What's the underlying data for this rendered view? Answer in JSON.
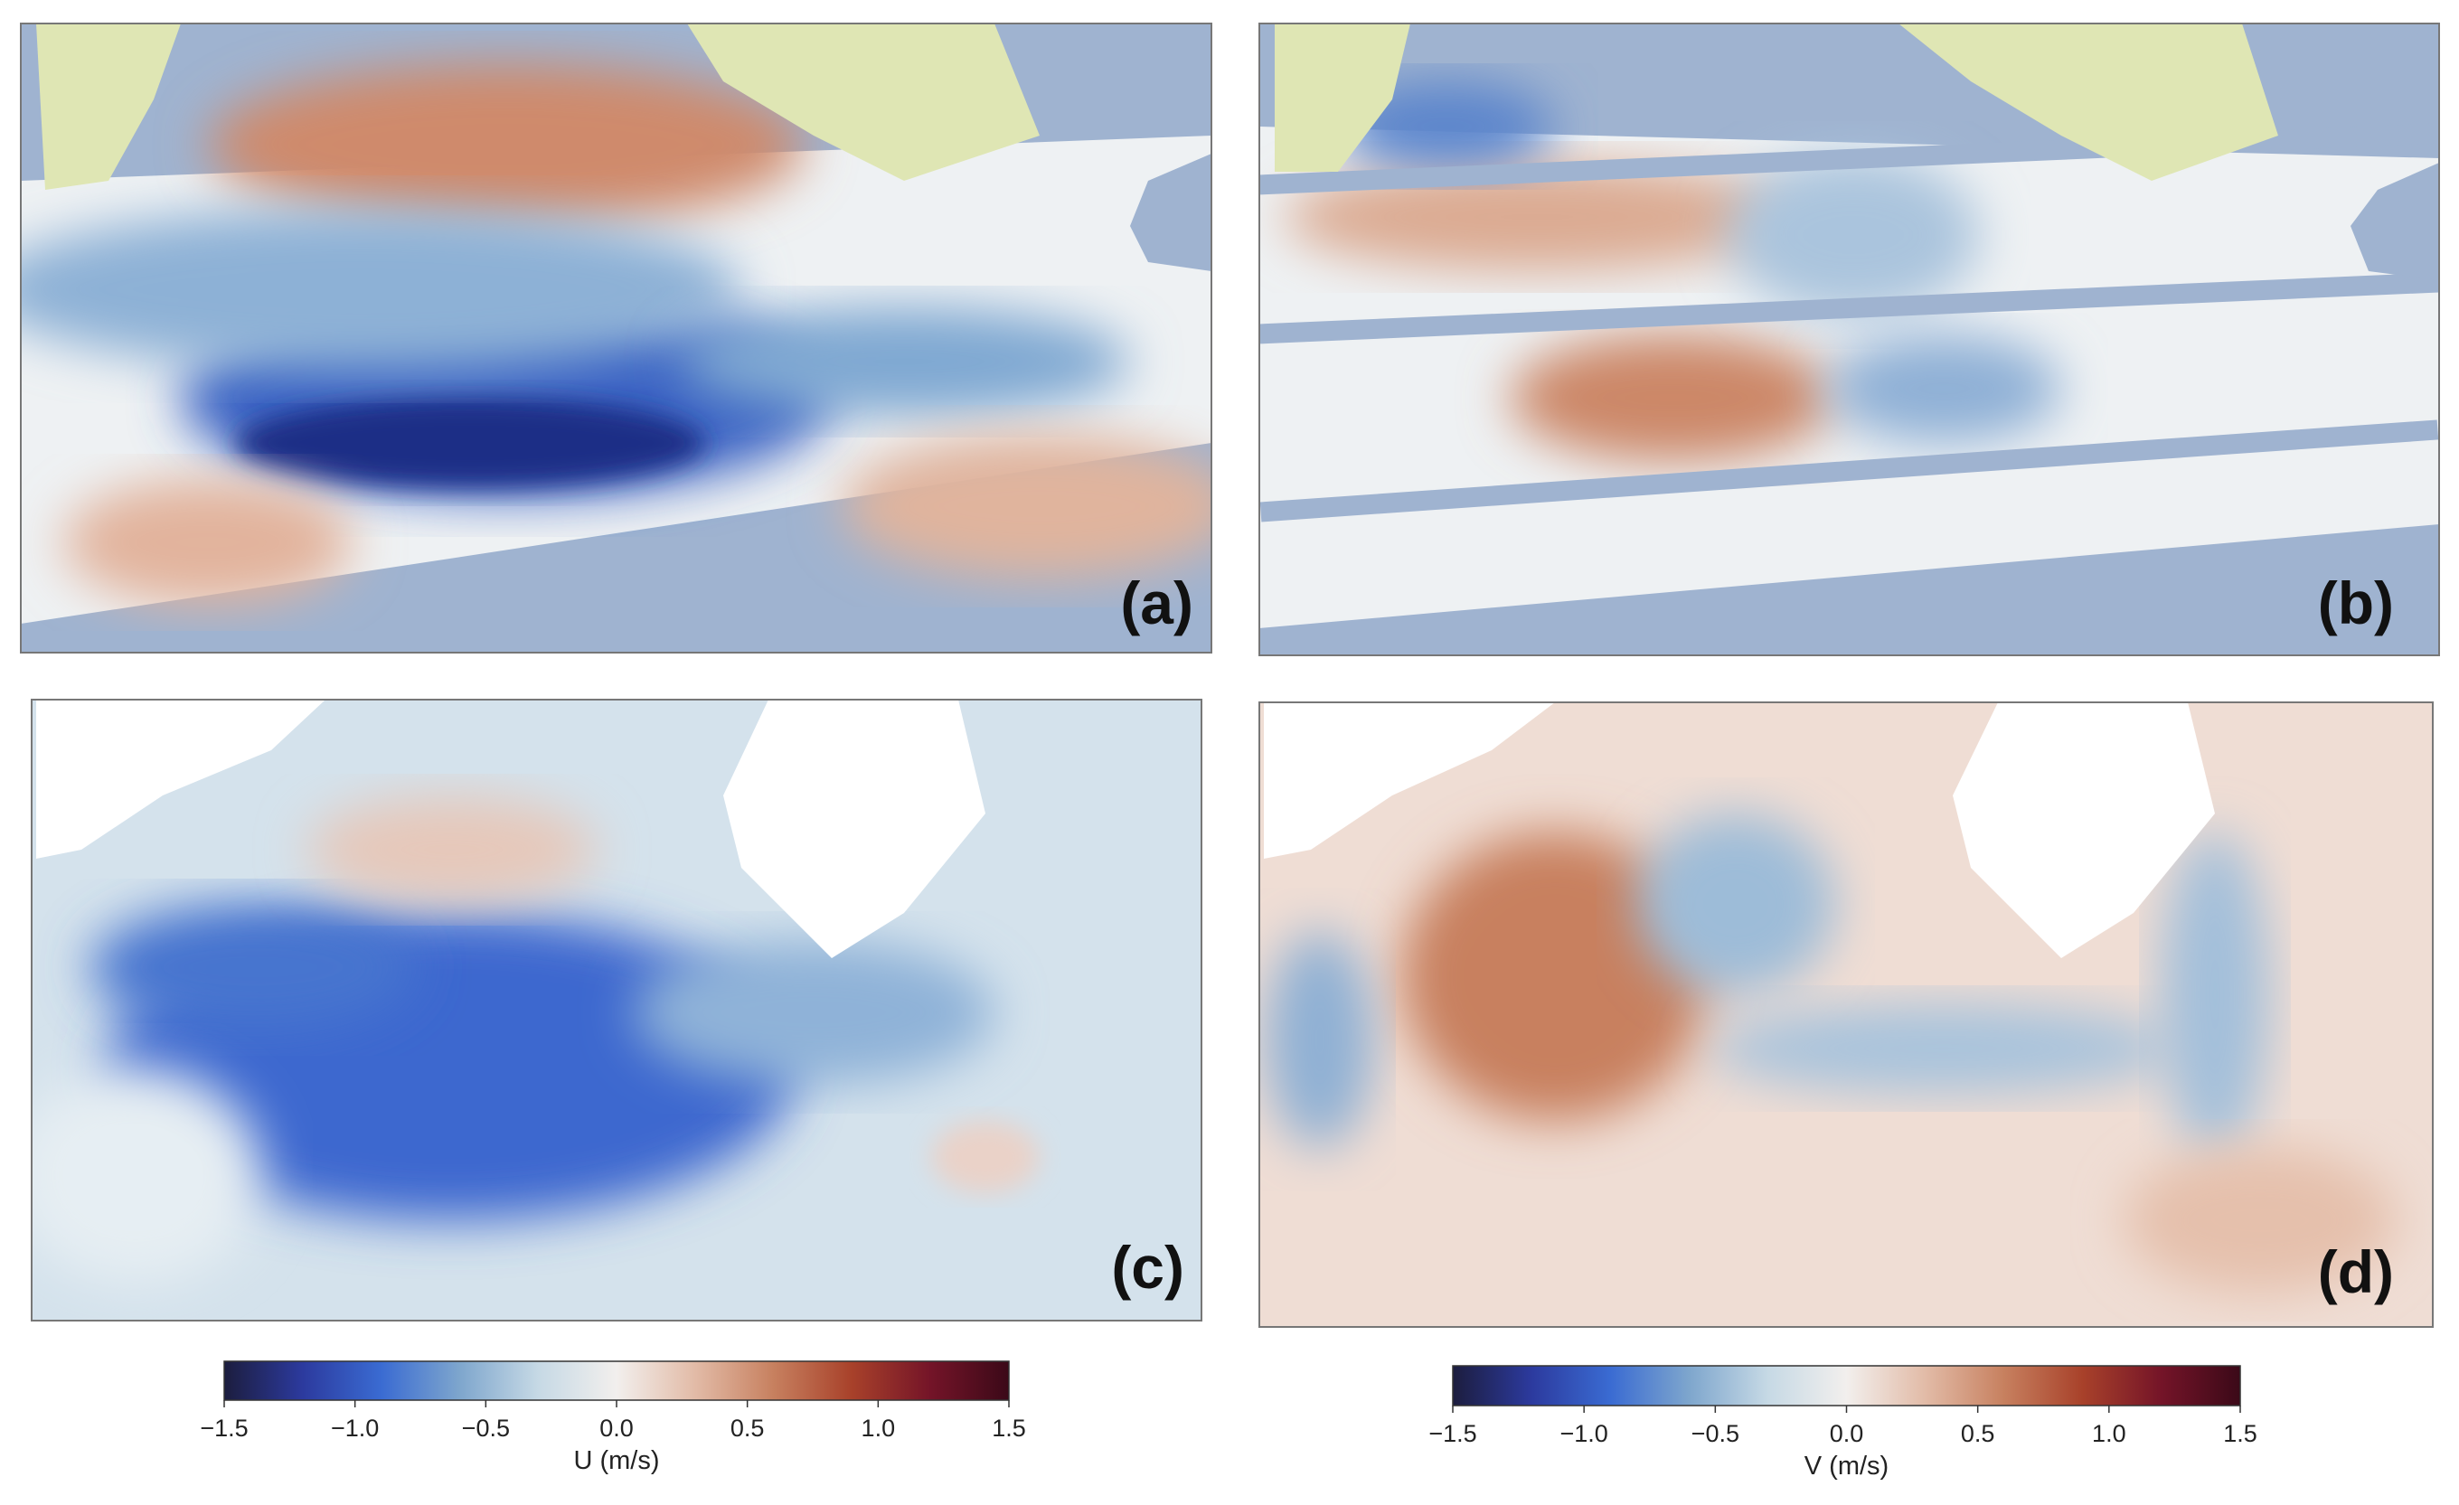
{
  "panels": [
    {
      "label": "(a)"
    },
    {
      "label": "(b)"
    },
    {
      "label": "(c)"
    },
    {
      "label": "(d)"
    }
  ],
  "chart_data": [
    {
      "type": "colorbar",
      "label": "U (m/s)",
      "colormap": [
        "#1c1d3e",
        "#2c3a9e",
        "#3a6bd2",
        "#7ea6cd",
        "#c6d9e5",
        "#f2efed",
        "#e2bba7",
        "#c7805f",
        "#a8412a",
        "#741428",
        "#3b0918"
      ],
      "xlim": [
        -1.5,
        1.5
      ],
      "xticks": [
        {
          "value": -1.5,
          "label": "−1.5"
        },
        {
          "value": -1.0,
          "label": "−1.0"
        },
        {
          "value": -0.5,
          "label": "−0.5"
        },
        {
          "value": 0,
          "label": "0.0"
        },
        0.5,
        {
          "value": 1.0,
          "label": "1.0"
        },
        1.5
      ]
    },
    {
      "type": "colorbar",
      "label": "V (m/s)",
      "colormap": [
        "#1c1d3e",
        "#2c3a9e",
        "#3a6bd2",
        "#7ea6cd",
        "#c6d9e5",
        "#f2efed",
        "#e2bba7",
        "#c7805f",
        "#a8412a",
        "#741428",
        "#3b0918"
      ],
      "xlim": [
        -1.5,
        1.5
      ],
      "xticks": [
        {
          "value": -1.5,
          "label": "−1.5"
        },
        {
          "value": -1.0,
          "label": "−1.0"
        },
        {
          "value": -0.5,
          "label": "−0.5"
        },
        {
          "value": 0,
          "label": "0.0"
        },
        0.5,
        {
          "value": 1.0,
          "label": "1.0"
        },
        1.5
      ]
    }
  ]
}
